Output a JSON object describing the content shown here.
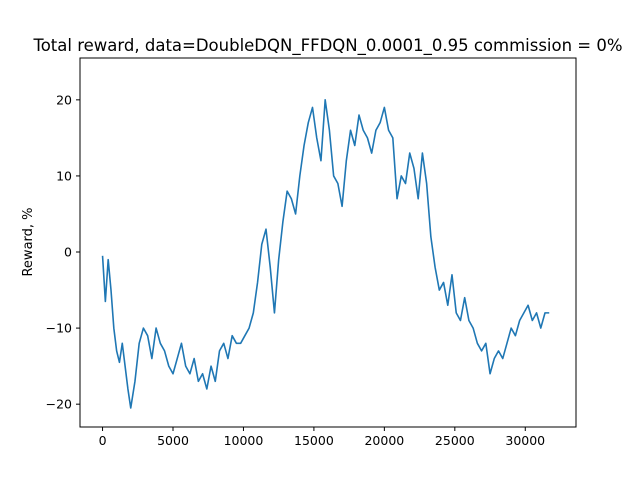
{
  "chart_data": {
    "type": "line",
    "title": "Total reward, data=DoubleDQN_FFDQN_0.0001_0.95 commission = 0%",
    "xlabel": "",
    "ylabel": "Reward, %",
    "xlim": [
      -1600,
      33600
    ],
    "ylim": [
      -23,
      25.5
    ],
    "xticks": [
      0,
      5000,
      10000,
      15000,
      20000,
      25000,
      30000
    ],
    "yticks": [
      -20,
      -10,
      0,
      10,
      20
    ],
    "grid": false,
    "legend": "none",
    "series": [
      {
        "color": "#1f77b4",
        "x": [
          0,
          200,
          400,
          600,
          800,
          1000,
          1200,
          1400,
          1600,
          1800,
          2000,
          2300,
          2600,
          2900,
          3200,
          3500,
          3800,
          4100,
          4400,
          4700,
          5000,
          5300,
          5600,
          5900,
          6200,
          6500,
          6800,
          7100,
          7400,
          7700,
          8000,
          8300,
          8600,
          8900,
          9200,
          9500,
          9800,
          10100,
          10400,
          10700,
          11000,
          11300,
          11600,
          11900,
          12200,
          12500,
          12800,
          13100,
          13400,
          13700,
          14000,
          14300,
          14600,
          14900,
          15200,
          15500,
          15800,
          16100,
          16400,
          16700,
          17000,
          17300,
          17600,
          17900,
          18200,
          18500,
          18800,
          19100,
          19400,
          19700,
          20000,
          20300,
          20600,
          20900,
          21200,
          21500,
          21800,
          22100,
          22400,
          22700,
          23000,
          23300,
          23600,
          23900,
          24200,
          24500,
          24800,
          25100,
          25400,
          25700,
          26000,
          26300,
          26600,
          26900,
          27200,
          27500,
          27800,
          28100,
          28400,
          28700,
          29000,
          29300,
          29600,
          29900,
          30200,
          30500,
          30800,
          31100,
          31400,
          31700
        ],
        "y": [
          -0.5,
          -6.5,
          -1,
          -5,
          -10,
          -13,
          -14.5,
          -12,
          -15,
          -18,
          -20.5,
          -17,
          -12,
          -10,
          -11,
          -14,
          -10,
          -12,
          -13,
          -15,
          -16,
          -14,
          -12,
          -15,
          -16,
          -14,
          -17,
          -16,
          -18,
          -15,
          -17,
          -13,
          -12,
          -14,
          -11,
          -12,
          -12,
          -11,
          -10,
          -8,
          -4,
          1,
          3,
          -2,
          -8,
          -1,
          4,
          8,
          7,
          5,
          10,
          14,
          17,
          19,
          15,
          12,
          20,
          16,
          10,
          9,
          6,
          12,
          16,
          14,
          18,
          16,
          15,
          13,
          16,
          17,
          19,
          16,
          15,
          7,
          10,
          9,
          13,
          11,
          7,
          13,
          9,
          2,
          -2,
          -5,
          -4,
          -7,
          -3,
          -8,
          -9,
          -6,
          -9,
          -10,
          -12,
          -13,
          -12,
          -16,
          -14,
          -13,
          -14,
          -12,
          -10,
          -11,
          -9,
          -8,
          -7,
          -9,
          -8,
          -10,
          -8,
          -8
        ]
      }
    ]
  }
}
